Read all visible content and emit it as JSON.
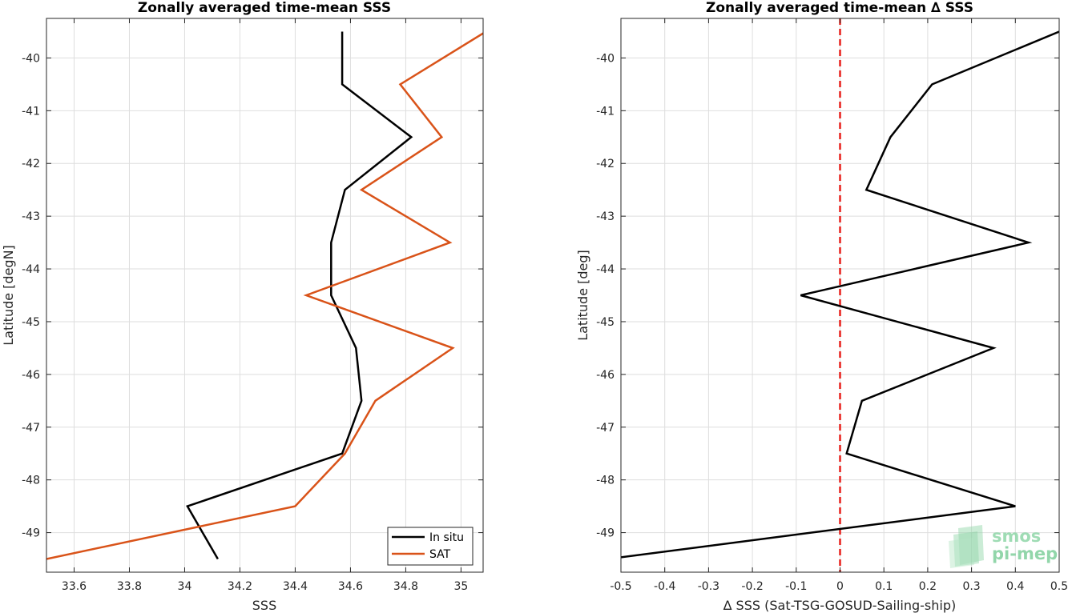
{
  "chart_data": [
    {
      "type": "line",
      "title": "Zonally averaged time-mean SSS",
      "xlabel": "SSS",
      "ylabel": "Latitude [degN]",
      "xlim": [
        33.5,
        35.08
      ],
      "ylim": [
        -49.75,
        -39.25
      ],
      "xticks": [
        33.6,
        33.8,
        34,
        34.2,
        34.4,
        34.6,
        34.8,
        35
      ],
      "xtick_labels": [
        "33.6",
        "33.8",
        "34",
        "34.2",
        "34.4",
        "34.6",
        "34.8",
        "35"
      ],
      "yticks": [
        -40,
        -41,
        -42,
        -43,
        -44,
        -45,
        -46,
        -47,
        -48,
        -49
      ],
      "ytick_labels": [
        "-40",
        "-41",
        "-42",
        "-43",
        "-44",
        "-45",
        "-46",
        "-47",
        "-48",
        "-49"
      ],
      "grid": true,
      "legend": "bottom-right",
      "series": [
        {
          "name": "In situ",
          "color": "#000000",
          "x": [
            34.57,
            34.57,
            34.82,
            34.58,
            34.53,
            34.53,
            34.62,
            34.64,
            34.57,
            34.01,
            34.12
          ],
          "y": [
            -39.5,
            -40.5,
            -41.5,
            -42.5,
            -43.5,
            -44.5,
            -45.5,
            -46.5,
            -47.5,
            -48.5,
            -49.5
          ]
        },
        {
          "name": "SAT",
          "color": "#d95319",
          "x": [
            35.09,
            34.78,
            34.93,
            34.64,
            34.96,
            34.44,
            34.97,
            34.69,
            34.58,
            34.4,
            33.5
          ],
          "y": [
            -39.5,
            -40.5,
            -41.5,
            -42.5,
            -43.5,
            -44.5,
            -45.5,
            -46.5,
            -47.5,
            -48.5,
            -49.5
          ]
        }
      ]
    },
    {
      "type": "line",
      "title": "Zonally averaged time-mean ∆ SSS",
      "xlabel": "∆ SSS (Sat-TSG-GOSUD-Sailing-ship)",
      "ylabel": "Latitude [deg]",
      "xlim": [
        -0.5,
        0.5
      ],
      "ylim": [
        -49.75,
        -39.25
      ],
      "xticks": [
        -0.5,
        -0.4,
        -0.3,
        -0.2,
        -0.1,
        0,
        0.1,
        0.2,
        0.3,
        0.4,
        0.5
      ],
      "xtick_labels": [
        "-0.5",
        "-0.4",
        "-0.3",
        "-0.2",
        "-0.1",
        "0",
        "0.1",
        "0.2",
        "0.3",
        "0.4",
        "0.5"
      ],
      "yticks": [
        -40,
        -41,
        -42,
        -43,
        -44,
        -45,
        -46,
        -47,
        -48,
        -49
      ],
      "ytick_labels": [
        "-40",
        "-41",
        "-42",
        "-43",
        "-44",
        "-45",
        "-46",
        "-47",
        "-48",
        "-49"
      ],
      "grid": true,
      "reference_line": {
        "x": 0,
        "color": "#e8201c",
        "style": "dashed"
      },
      "series": [
        {
          "color": "#000000",
          "x": [
            0.5,
            0.21,
            0.115,
            0.06,
            0.43,
            -0.09,
            0.35,
            0.05,
            0.015,
            0.4,
            -0.53
          ],
          "y": [
            -39.5,
            -40.5,
            -41.5,
            -42.5,
            -43.5,
            -44.5,
            -45.5,
            -46.5,
            -47.5,
            -48.5,
            -49.5
          ]
        }
      ]
    }
  ],
  "logo": {
    "line1": "smos",
    "line2": "pi-mep"
  }
}
